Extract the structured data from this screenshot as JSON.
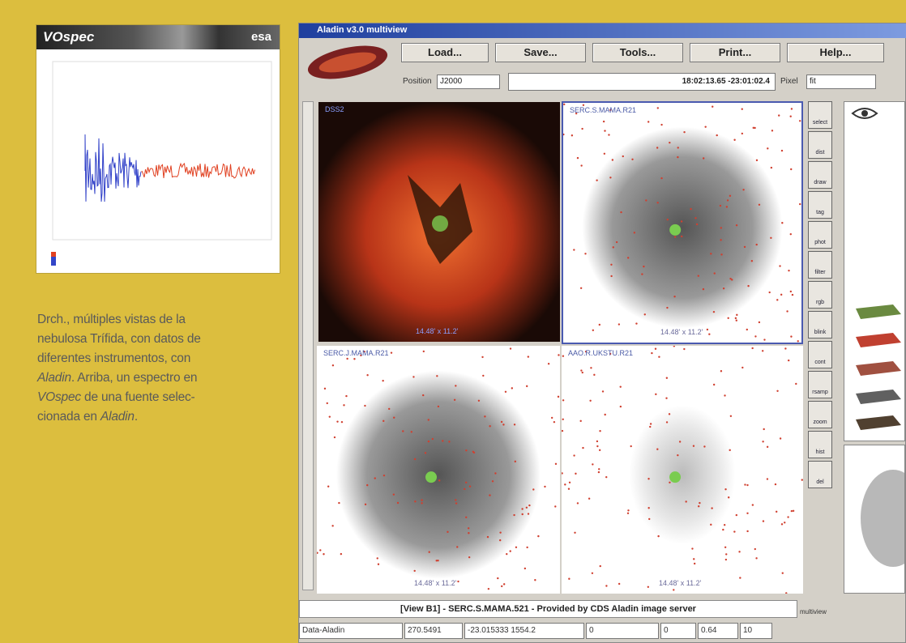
{
  "vospec": {
    "logo": "VOspec",
    "agency": "esa"
  },
  "caption": {
    "lines": [
      [
        "Drch., múltiples vistas de la"
      ],
      [
        "nebulosa Trífida, con datos de"
      ],
      [
        "diferentes instrumentos, con"
      ],
      [
        "Aladin",
        ". Arriba, un espectro en"
      ],
      [
        "VOspec",
        " de una fuente selec-"
      ],
      [
        "cionada en ",
        "Aladin",
        "."
      ]
    ]
  },
  "aladin": {
    "title": "Aladin v3.0 multiview",
    "buttons": [
      "Load...",
      "Save...",
      "Tools...",
      "Print...",
      "Help..."
    ],
    "position_label": "Position",
    "frame": "J2000",
    "coordinates": "18:02:13.65 -23:01:02.4",
    "pixel_label": "Pixel",
    "pixel_mode": "fit",
    "views": [
      {
        "label": "DSS2",
        "scale": "14.48' x 11.2'"
      },
      {
        "label": "SERC.S.MAMA.R21",
        "scale": "14.48' x 11.2'"
      },
      {
        "label": "SERC.J.MAMA.R21",
        "scale": "14.48' x 11.2'"
      },
      {
        "label": "AAO.R.UKSTU.R21",
        "scale": "14.48' x 11.2'"
      }
    ],
    "tools": [
      "select",
      "dist",
      "draw",
      "tag",
      "phot",
      "filter",
      "rgb",
      "blink",
      "cont",
      "rsamp",
      "zoom",
      "hist",
      "del"
    ],
    "frame_label": "multiview",
    "status": "[View B1] - SERC.S.MAMA.521 - Provided by CDS Aladin image server",
    "statusbar": [
      "Data-Aladin",
      "270.5491",
      "-23.015333 1554.2",
      "0",
      "0",
      "0.64",
      "10"
    ]
  }
}
